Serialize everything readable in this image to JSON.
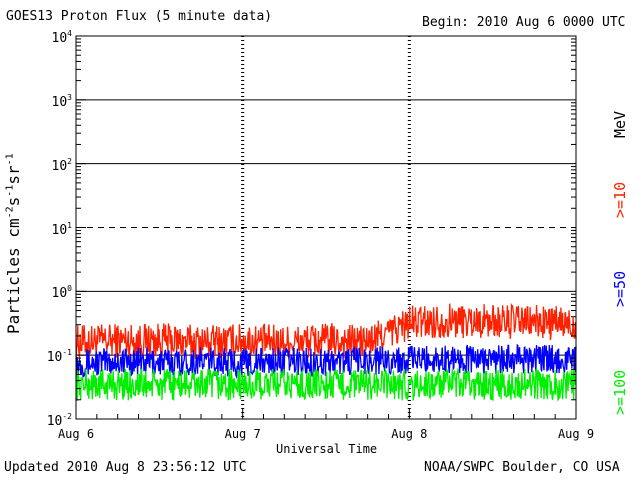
{
  "header": {
    "title": "GOES13 Proton Flux (5 minute data)",
    "begin": "Begin: 2010 Aug 6 0000 UTC"
  },
  "footer": {
    "updated": "Updated 2010 Aug  8 23:56:12 UTC",
    "credit": "NOAA/SWPC Boulder, CO USA"
  },
  "chart_data": {
    "type": "line",
    "title": "GOES13 Proton Flux (5 minute data)",
    "xlabel": "Universal Time",
    "ylabel": "Particles cm-2s-1sr-1",
    "yscale": "log",
    "ylim": [
      0.01,
      10000
    ],
    "xlim": [
      0,
      3
    ],
    "x_ticks": [
      "Aug 6",
      "Aug 7",
      "Aug 8",
      "Aug 9"
    ],
    "y_ticks": [
      {
        "base": "10",
        "exp": "4"
      },
      {
        "base": "10",
        "exp": "3"
      },
      {
        "base": "10",
        "exp": "2"
      },
      {
        "base": "10",
        "exp": "1"
      },
      {
        "base": "10",
        "exp": "0"
      },
      {
        "base": "10",
        "exp": "-1"
      },
      {
        "base": "10",
        "exp": "-2"
      }
    ],
    "reference_lines": [
      {
        "y": 1000,
        "style": "solid"
      },
      {
        "y": 100,
        "style": "solid"
      },
      {
        "y": 10,
        "style": "dashed"
      },
      {
        "y": 1,
        "style": "solid"
      },
      {
        "y": 0.1,
        "style": "solid"
      }
    ],
    "legend_unit": "MeV",
    "series": [
      {
        "name": ">=10",
        "color": "#ff2000",
        "x": [
          0,
          0.25,
          0.5,
          0.75,
          1.0,
          1.25,
          1.5,
          1.75,
          2.0,
          2.25,
          2.5,
          2.75,
          3.0
        ],
        "y": [
          0.16,
          0.17,
          0.17,
          0.16,
          0.17,
          0.16,
          0.17,
          0.16,
          0.32,
          0.35,
          0.34,
          0.33,
          0.3
        ]
      },
      {
        "name": ">=50",
        "color": "#0000ff",
        "x": [
          0,
          0.25,
          0.5,
          0.75,
          1.0,
          1.25,
          1.5,
          1.75,
          2.0,
          2.25,
          2.5,
          2.75,
          3.0
        ],
        "y": [
          0.075,
          0.08,
          0.078,
          0.08,
          0.076,
          0.08,
          0.078,
          0.082,
          0.085,
          0.088,
          0.085,
          0.087,
          0.086
        ]
      },
      {
        "name": ">=100",
        "color": "#00ee00",
        "x": [
          0,
          0.25,
          0.5,
          0.75,
          1.0,
          1.25,
          1.5,
          1.75,
          2.0,
          2.25,
          2.5,
          2.75,
          3.0
        ],
        "y": [
          0.034,
          0.035,
          0.034,
          0.035,
          0.034,
          0.035,
          0.034,
          0.035,
          0.034,
          0.035,
          0.034,
          0.035,
          0.034
        ]
      }
    ]
  }
}
